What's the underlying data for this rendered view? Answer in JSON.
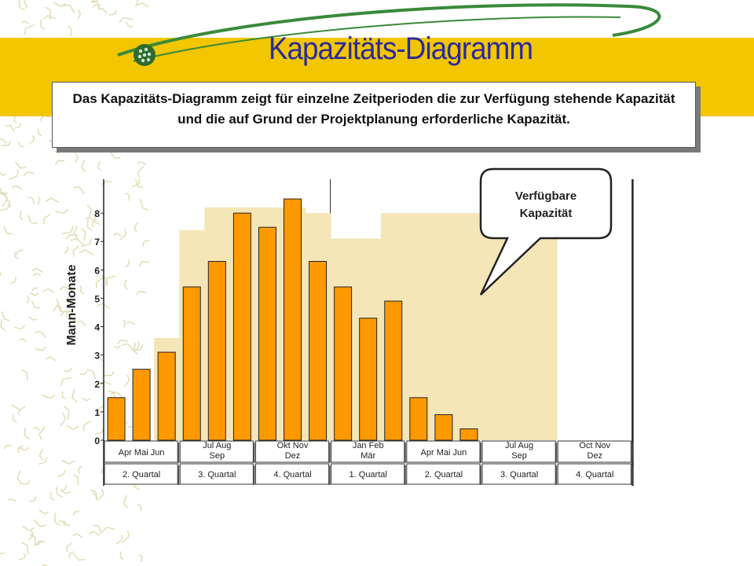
{
  "title": "Kapazitäts-Diagramm",
  "description": "Das Kapazitäts-Diagramm zeigt für einzelne Zeitperioden die zur Verfügung stehende Kapazität und die auf Grund der Projektplanung erforderliche Kapazität.",
  "callout": "Verfügbare Kapazität",
  "colors": {
    "band": "#f2c600",
    "title": "#2b2b9a",
    "bar": "#ff9900",
    "available": "#f5e6b8",
    "swoosh": "#3a8a3a"
  },
  "chart_data": {
    "type": "bar",
    "ylabel": "Mann-Monate",
    "ylim": [
      0,
      9
    ],
    "yticks": [
      "0",
      "1",
      "2",
      "3",
      "4",
      "5",
      "6",
      "7",
      "8"
    ],
    "quarters": [
      {
        "label": "2. Quartal",
        "months": "Apr  Mai  Jun",
        "values": [
          1.5,
          2.5,
          3.1
        ],
        "available": [
          0,
          0,
          3.6
        ]
      },
      {
        "label": "3. Quartal",
        "months": "Jul  Aug  Sep",
        "values": [
          5.4,
          6.3,
          8.0
        ],
        "available": [
          7.4,
          8.2,
          8.2
        ]
      },
      {
        "label": "4. Quartal",
        "months": "Okt  Nov  Dez",
        "values": [
          7.5,
          8.5,
          6.3
        ],
        "available": [
          8.2,
          8.2,
          8.0
        ]
      },
      {
        "label": "1. Quartal",
        "months": "Jan  Feb  Mär",
        "values": [
          5.4,
          4.3,
          4.9
        ],
        "available": [
          7.1,
          7.1,
          8.0
        ]
      },
      {
        "label": "2. Quartal",
        "months": "Apr  Mai  Jun",
        "values": [
          1.5,
          0.9,
          0.4
        ],
        "available": [
          8.0,
          8.0,
          8.0
        ]
      },
      {
        "label": "3. Quartal",
        "months": "Jul  Aug  Sep",
        "values": [],
        "available": [
          8.0,
          8.0,
          8.0
        ]
      },
      {
        "label": "4. Quartal",
        "months": "Oct  Nov  Dez",
        "values": [],
        "available": []
      }
    ]
  }
}
